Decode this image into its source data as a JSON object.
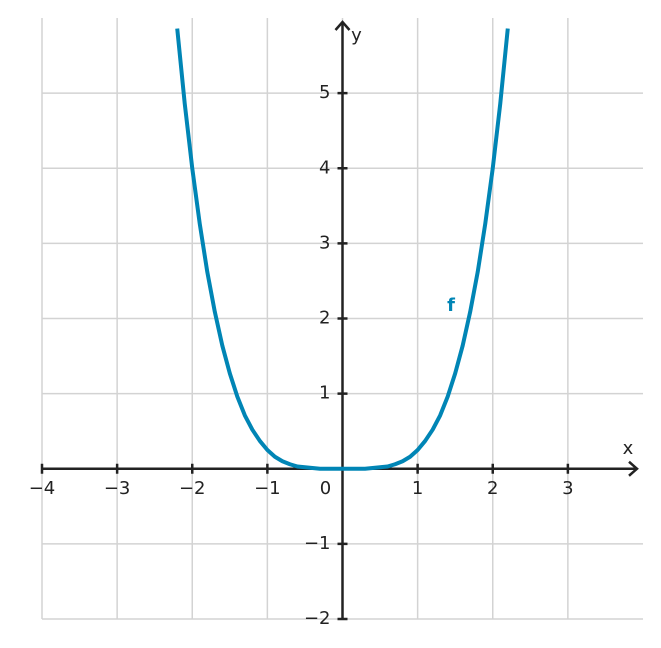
{
  "chart_data": {
    "type": "line",
    "x_label": "x",
    "y_label": "y",
    "x": [
      -2.2,
      -2.1,
      -2.0,
      -1.9,
      -1.8,
      -1.7,
      -1.6,
      -1.5,
      -1.4,
      -1.3,
      -1.2,
      -1.1,
      -1.0,
      -0.9,
      -0.8,
      -0.7,
      -0.6,
      -0.5,
      -0.4,
      -0.3,
      -0.2,
      -0.1,
      0,
      0.1,
      0.2,
      0.3,
      0.4,
      0.5,
      0.6,
      0.7,
      0.8,
      0.9,
      1.0,
      1.1,
      1.2,
      1.3,
      1.4,
      1.5,
      1.6,
      1.7,
      1.8,
      1.9,
      2.0,
      2.1,
      2.2
    ],
    "series": [
      {
        "name": "f",
        "color": "#0085b5",
        "values": [
          5.86,
          4.86,
          4,
          3.26,
          2.62,
          2.09,
          1.64,
          1.27,
          0.96,
          0.71,
          0.52,
          0.37,
          0.25,
          0.16,
          0.1,
          0.06,
          0.03,
          0.02,
          0.01,
          0,
          0,
          0,
          0,
          0,
          0,
          0,
          0.01,
          0.02,
          0.03,
          0.06,
          0.1,
          0.16,
          0.25,
          0.37,
          0.52,
          0.71,
          0.96,
          1.27,
          1.64,
          2.09,
          2.62,
          3.26,
          4,
          4.86,
          5.86
        ]
      }
    ],
    "xlim": [
      -4,
      4
    ],
    "ylim": [
      -2,
      6
    ],
    "xticks": [
      {
        "value": -4,
        "label": "−4"
      },
      {
        "value": -3,
        "label": "−3"
      },
      {
        "value": -2,
        "label": "−2"
      },
      {
        "value": -1,
        "label": "−1"
      },
      0,
      1,
      2,
      3
    ],
    "yticks": [
      {
        "value": -2,
        "label": "−2"
      },
      {
        "value": -1,
        "label": "−1"
      },
      1,
      2,
      3,
      4,
      5
    ],
    "grid": true
  }
}
